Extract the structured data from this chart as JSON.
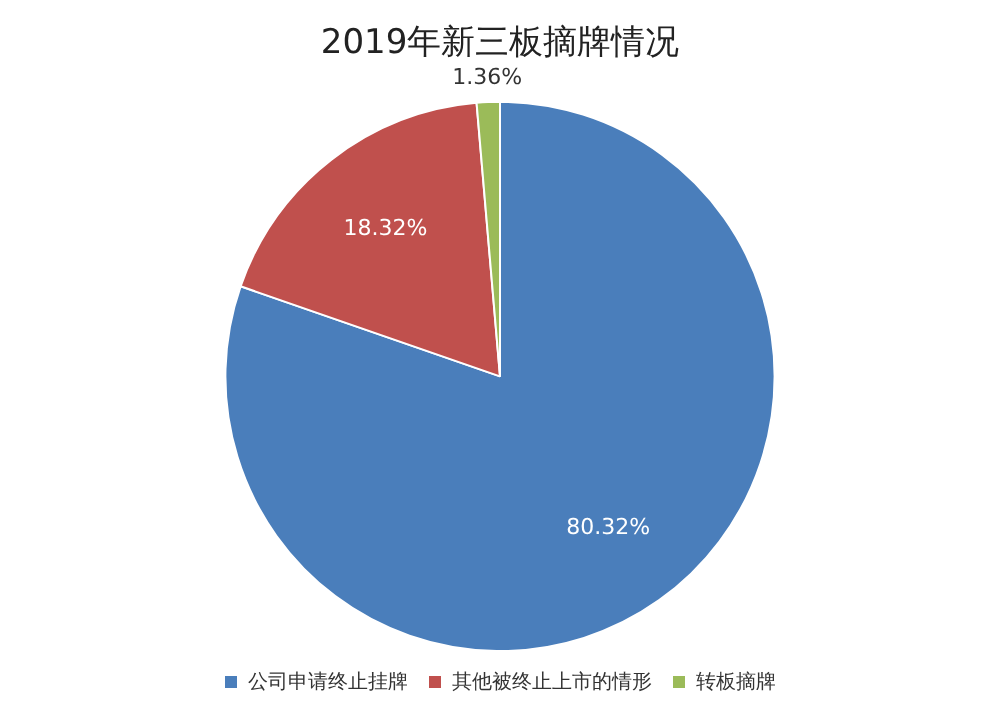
{
  "chart_data": {
    "type": "pie",
    "title": "2019年新三板摘牌情况",
    "categories": [
      "公司申请终止挂牌",
      "其他被终止上市的情形",
      "转板摘牌"
    ],
    "values": [
      80.32,
      18.32,
      1.36
    ],
    "colors": [
      "#4a7ebb",
      "#c0504d",
      "#9bbb59"
    ],
    "value_labels": [
      "80.32%",
      "18.32%",
      "1.36%"
    ],
    "legend": "bottom"
  }
}
